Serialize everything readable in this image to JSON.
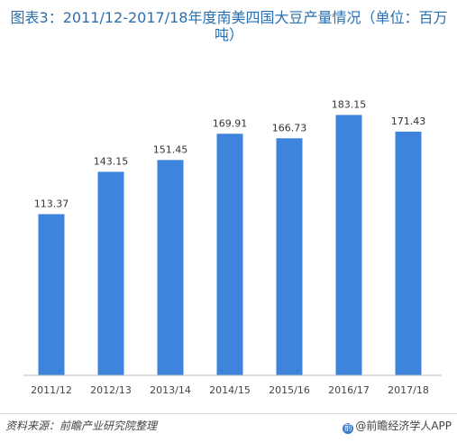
{
  "chart_data": {
    "type": "bar",
    "title": "图表3：2011/12-2017/18年度南美四国大豆产量情况（单位：百万吨）",
    "categories": [
      "2011/12",
      "2012/13",
      "2013/14",
      "2014/15",
      "2015/16",
      "2016/17",
      "2017/18"
    ],
    "values": [
      113.37,
      143.15,
      151.45,
      169.91,
      166.73,
      183.15,
      171.43
    ],
    "value_labels": [
      "113.37",
      "143.15",
      "151.45",
      "169.91",
      "166.73",
      "183.15",
      "171.43"
    ],
    "ylim": [
      0,
      200
    ],
    "grid": false,
    "legend": "none",
    "bar_color": "#3e84dc"
  },
  "footer": {
    "source": "资料来源：前瞻产业研究院整理",
    "brand": "@前瞻经济学人APP",
    "brand_icon": "qianzhan-logo-icon"
  }
}
